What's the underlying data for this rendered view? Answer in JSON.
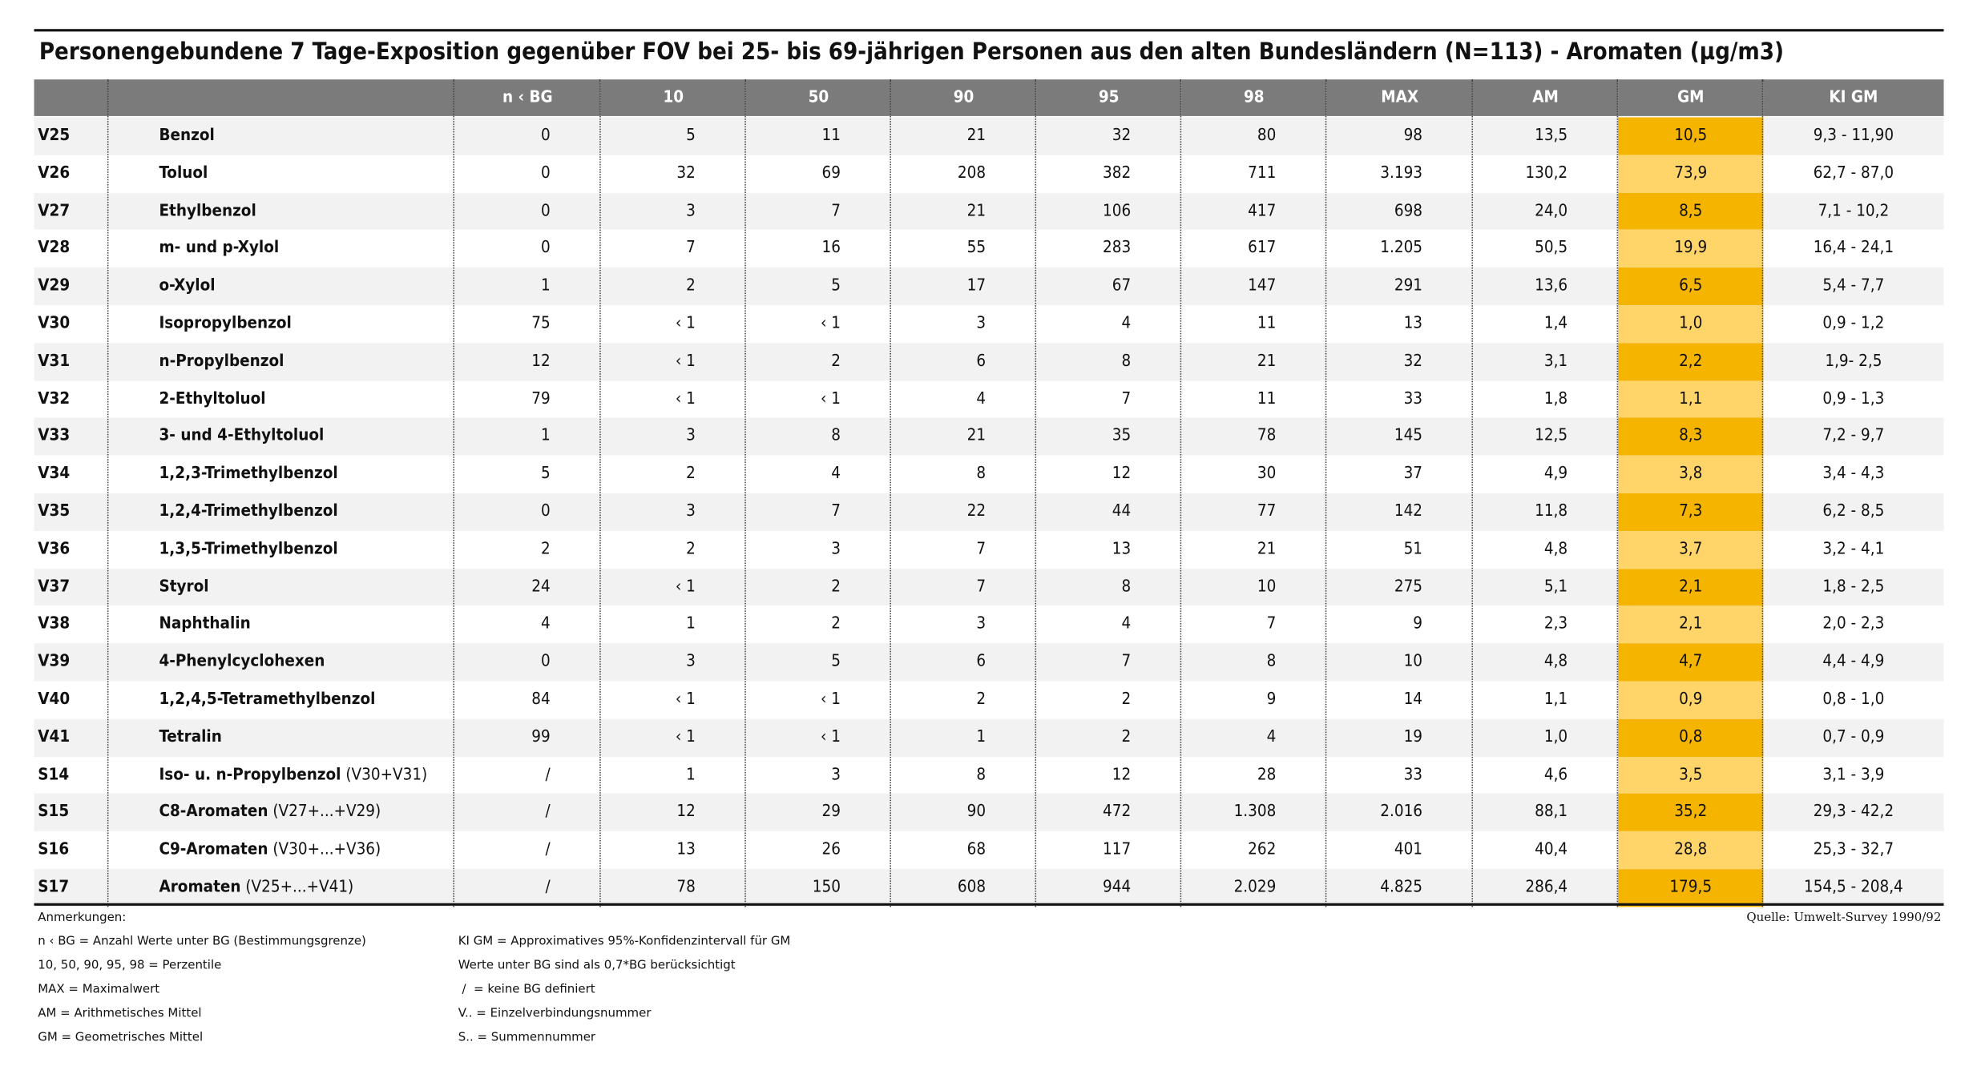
{
  "title": "Personengebundene 7 Tage-Exposition gegenüber FOV bei 25- bis 69-jährigen Personen aus den alten Bundesländern (N=113) - Aromaten (µg/m3)",
  "table": {
    "header": [
      "n ‹ BG",
      "10",
      "50",
      "90",
      "95",
      "98",
      "MAX",
      "AM",
      "GM",
      "KI GM"
    ],
    "rows": [
      {
        "id": "V25",
        "name": "Benzol",
        "values": [
          "0",
          "5",
          "11",
          "21",
          "32",
          "80",
          "98",
          "13,5",
          "10,5",
          "9,3 - 11,90"
        ]
      },
      {
        "id": "V26",
        "name": "Toluol",
        "values": [
          "0",
          "32",
          "69",
          "208",
          "382",
          "711",
          "3.193",
          "130,2",
          "73,9",
          "62,7 - 87,0"
        ]
      },
      {
        "id": "V27",
        "name": "Ethylbenzol",
        "values": [
          "0",
          "3",
          "7",
          "21",
          "106",
          "417",
          "698",
          "24,0",
          "8,5",
          "7,1 - 10,2"
        ]
      },
      {
        "id": "V28",
        "name": "m- und p-Xylol",
        "values": [
          "0",
          "7",
          "16",
          "55",
          "283",
          "617",
          "1.205",
          "50,5",
          "19,9",
          "16,4 - 24,1"
        ]
      },
      {
        "id": "V29",
        "name": "o-Xylol",
        "values": [
          "1",
          "2",
          "5",
          "17",
          "67",
          "147",
          "291",
          "13,6",
          "6,5",
          "5,4 - 7,7"
        ]
      },
      {
        "id": "V30",
        "name": "Isopropylbenzol",
        "values": [
          "75",
          "‹ 1",
          "‹ 1",
          "3",
          "4",
          "11",
          "13",
          "1,4",
          "1,0",
          "0,9 - 1,2"
        ]
      },
      {
        "id": "V31",
        "name": "n-Propylbenzol",
        "values": [
          "12",
          "‹ 1",
          "2",
          "6",
          "8",
          "21",
          "32",
          "3,1",
          "2,2",
          "1,9- 2,5"
        ]
      },
      {
        "id": "V32",
        "name": "2-Ethyltoluol",
        "values": [
          "79",
          "‹ 1",
          "‹ 1",
          "4",
          "7",
          "11",
          "33",
          "1,8",
          "1,1",
          "0,9 - 1,3"
        ]
      },
      {
        "id": "V33",
        "name": "3- und 4-Ethyltoluol",
        "values": [
          "1",
          "3",
          "8",
          "21",
          "35",
          "78",
          "145",
          "12,5",
          "8,3",
          "7,2 - 9,7"
        ]
      },
      {
        "id": "V34",
        "name": "1,2,3-Trimethylbenzol",
        "values": [
          "5",
          "2",
          "4",
          "8",
          "12",
          "30",
          "37",
          "4,9",
          "3,8",
          "3,4 - 4,3"
        ]
      },
      {
        "id": "V35",
        "name": "1,2,4-Trimethylbenzol",
        "values": [
          "0",
          "3",
          "7",
          "22",
          "44",
          "77",
          "142",
          "11,8",
          "7,3",
          "6,2 - 8,5"
        ]
      },
      {
        "id": "V36",
        "name": "1,3,5-Trimethylbenzol",
        "values": [
          "2",
          "2",
          "3",
          "7",
          "13",
          "21",
          "51",
          "4,8",
          "3,7",
          "3,2 - 4,1"
        ]
      },
      {
        "id": "V37",
        "name": "Styrol",
        "values": [
          "24",
          "‹ 1",
          "2",
          "7",
          "8",
          "10",
          "275",
          "5,1",
          "2,1",
          "1,8 - 2,5"
        ]
      },
      {
        "id": "V38",
        "name": "Naphthalin",
        "values": [
          "4",
          "1",
          "2",
          "3",
          "4",
          "7",
          "9",
          "2,3",
          "2,1",
          "2,0 - 2,3"
        ]
      },
      {
        "id": "V39",
        "name": "4-Phenylcyclohexen",
        "values": [
          "0",
          "3",
          "5",
          "6",
          "7",
          "8",
          "10",
          "4,8",
          "4,7",
          "4,4 - 4,9"
        ]
      },
      {
        "id": "V40",
        "name": "1,2,4,5-Tetramethylbenzol",
        "values": [
          "84",
          "‹ 1",
          "‹ 1",
          "2",
          "2",
          "9",
          "14",
          "1,1",
          "0,9",
          "0,8 - 1,0"
        ]
      },
      {
        "id": "V41",
        "name": "Tetralin",
        "values": [
          "99",
          "‹ 1",
          "‹ 1",
          "1",
          "2",
          "4",
          "19",
          "1,0",
          "0,8",
          "0,7 - 0,9"
        ]
      },
      {
        "id": "S14",
        "name": "Iso- u. n-Propylbenzol",
        "suffix": "(V30+V31)",
        "values": [
          "/",
          "1",
          "3",
          "8",
          "12",
          "28",
          "33",
          "4,6",
          "3,5",
          "3,1 - 3,9"
        ]
      },
      {
        "id": "S15",
        "name": "C8-Aromaten",
        "suffix": "(V27+...+V29)",
        "values": [
          "/",
          "12",
          "29",
          "90",
          "472",
          "1.308",
          "2.016",
          "88,1",
          "35,2",
          "29,3 - 42,2"
        ]
      },
      {
        "id": "S16",
        "name": "C9-Aromaten",
        "suffix": "(V30+...+V36)",
        "values": [
          "/",
          "13",
          "26",
          "68",
          "117",
          "262",
          "401",
          "40,4",
          "28,8",
          "25,3 - 32,7"
        ]
      },
      {
        "id": "S17",
        "name": "Aromaten",
        "suffix": "(V25+...+V41)",
        "values": [
          "/",
          "78",
          "150",
          "608",
          "944",
          "2.029",
          "4.825",
          "286,4",
          "179,5",
          "154,5 - 208,4"
        ]
      }
    ]
  },
  "notes": {
    "heading": "Anmerkungen:",
    "left": [
      "n ‹ BG = Anzahl Werte unter BG (Bestimmungsgrenze)",
      "10, 50, 90, 95, 98 = Perzentile",
      "MAX = Maximalwert",
      "AM = Arithmetisches Mittel",
      "GM = Geometrisches Mittel"
    ],
    "right": [
      "KI GM = Approximatives 95%-Konfidenzintervall für GM",
      "Werte unter BG sind als 0,7*BG berücksichtigt",
      " /  = keine BG definiert",
      "V.. = Einzelverbindungsnummer",
      "S.. = Summennummer"
    ],
    "source": "Quelle: Umwelt-Survey 1990/92"
  }
}
